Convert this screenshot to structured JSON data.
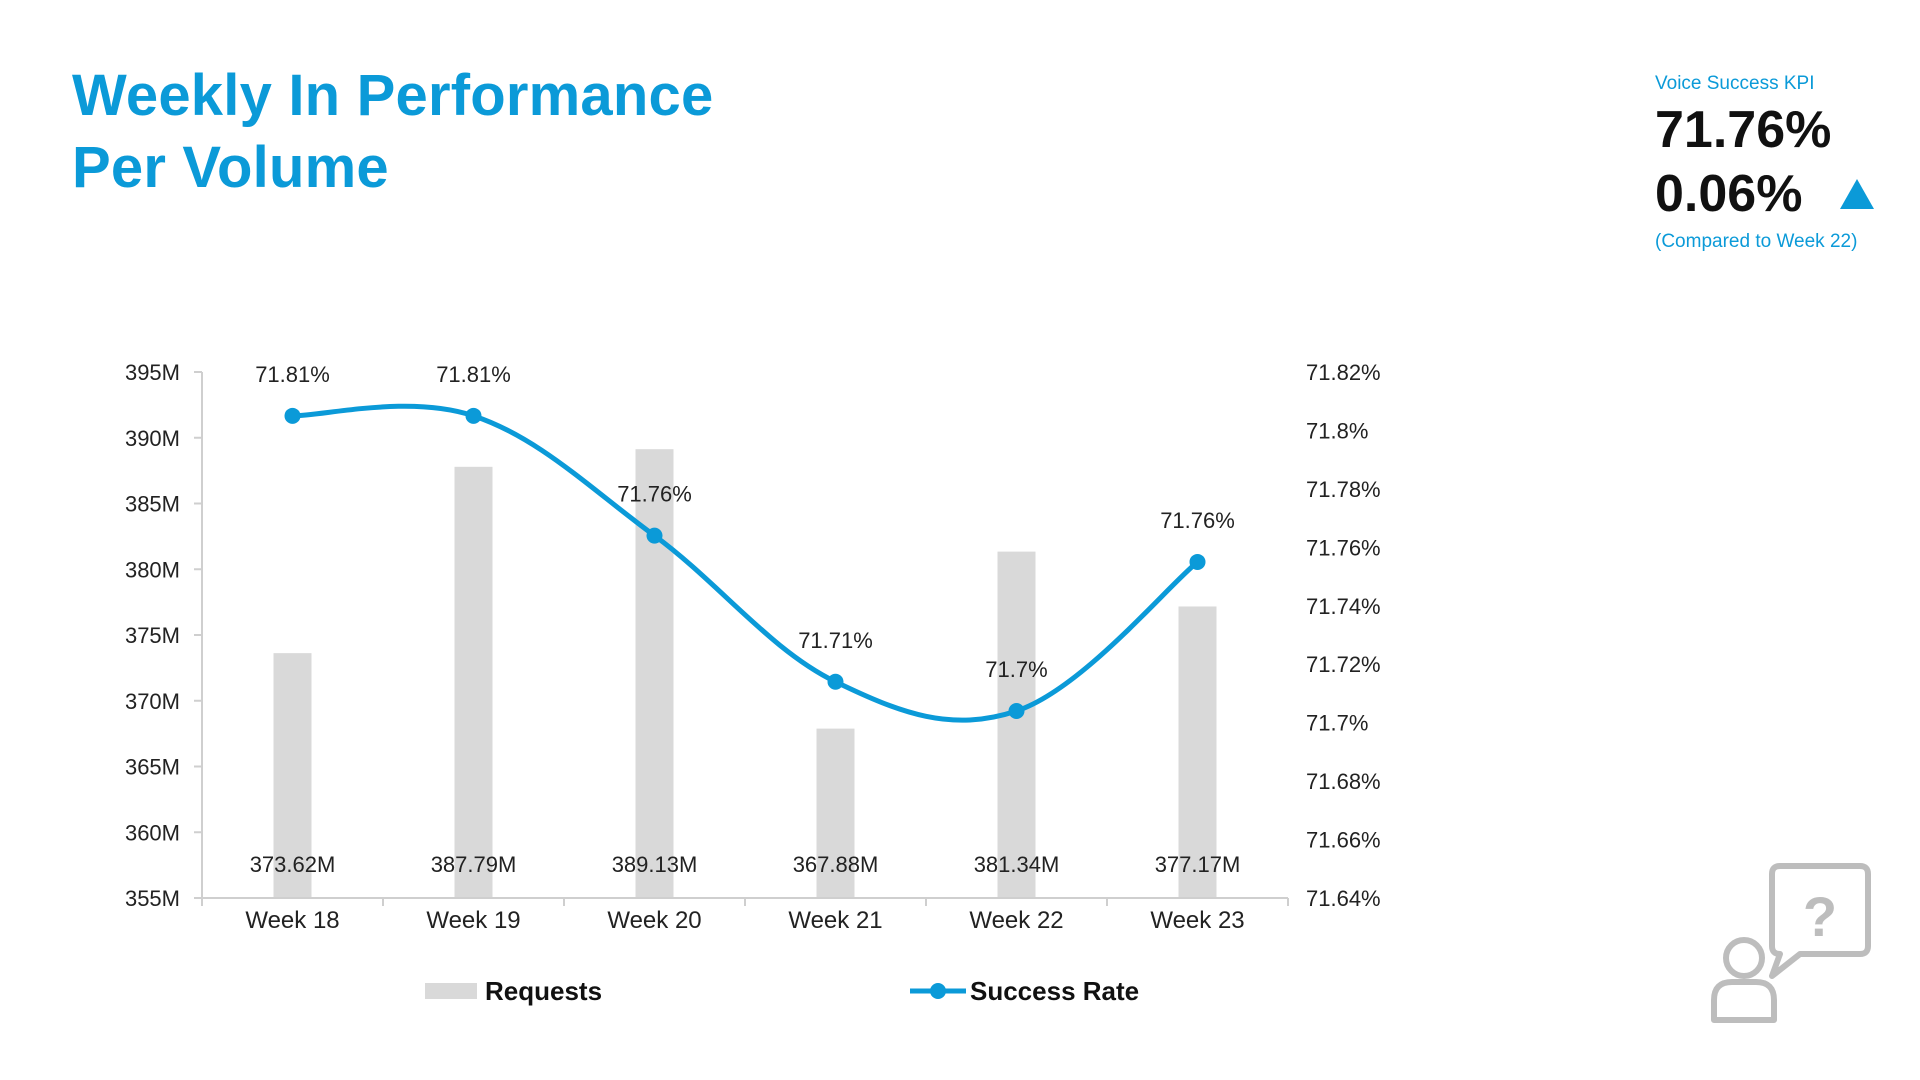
{
  "header": {
    "title_line1": "Weekly In Performance",
    "title_line2": "Per Volume"
  },
  "kpi": {
    "label": "Voice Success KPI",
    "value": "71.76%",
    "delta": "0.06%",
    "trend_icon": "up-triangle-icon",
    "compare_text": "(Compared to Week 22)"
  },
  "colors": {
    "accent": "#0b9ad8",
    "bar": "#d9d9d9",
    "text": "#111111"
  },
  "chart_data": {
    "type": "bar",
    "categories": [
      "Week 18",
      "Week 19",
      "Week 20",
      "Week 21",
      "Week 22",
      "Week 23"
    ],
    "series": [
      {
        "name": "Requests",
        "type": "bar",
        "axis": "left",
        "values": [
          373.62,
          387.79,
          389.13,
          367.88,
          381.34,
          377.17
        ],
        "labels": [
          "373.62M",
          "387.79M",
          "389.13M",
          "367.88M",
          "381.34M",
          "377.17M"
        ]
      },
      {
        "name": "Success Rate",
        "type": "line",
        "axis": "right",
        "values": [
          71.805,
          71.805,
          71.764,
          71.714,
          71.704,
          71.755
        ],
        "labels": [
          "71.81%",
          "71.81%",
          "71.76%",
          "71.71%",
          "71.7%",
          "71.76%"
        ]
      }
    ],
    "y_left": {
      "min": 355,
      "max": 395,
      "ticks": [
        "395M",
        "390M",
        "385M",
        "380M",
        "375M",
        "370M",
        "365M",
        "360M",
        "355M"
      ]
    },
    "y_right": {
      "min": 71.64,
      "max": 71.82,
      "ticks": [
        "71.82%",
        "71.8%",
        "71.78%",
        "71.76%",
        "71.74%",
        "71.72%",
        "71.7%",
        "71.68%",
        "71.66%",
        "71.64%"
      ]
    },
    "legend": {
      "position": "bottom",
      "items": [
        "Requests",
        "Success Rate"
      ]
    },
    "grid": false
  },
  "help_icon": "help-chat-person-icon"
}
